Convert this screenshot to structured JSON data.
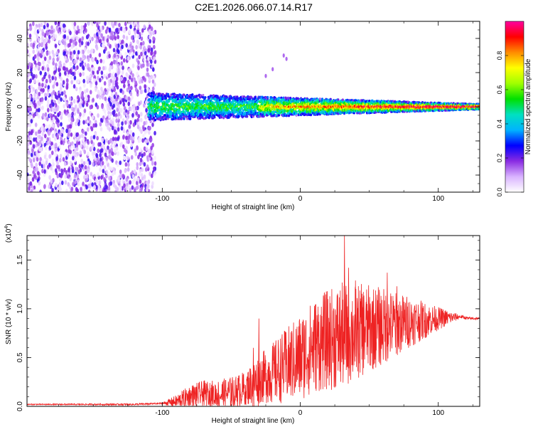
{
  "title": "C2E1.2026.066.07.14.R17",
  "chart_data": [
    {
      "type": "heatmap",
      "id": "spectrogram",
      "xlabel": "Height of straight line (km)",
      "ylabel": "Frequency (Hz)",
      "xlim": [
        -198,
        130
      ],
      "ylim": [
        -50,
        50
      ],
      "xticks": [
        -100,
        0,
        100
      ],
      "yticks": [
        -40,
        -20,
        0,
        20,
        40
      ],
      "xtick_labels": [
        "-100",
        "0",
        "100"
      ],
      "ytick_labels": [
        "-40",
        "-20",
        "0",
        "20",
        "40"
      ],
      "noise_region_x": [
        -198,
        -105
      ],
      "signal_onset_x": -110,
      "signal_center_freq": 0,
      "signal_band_half_width": [
        8,
        1.5
      ],
      "colorbar": {
        "label": "Normalized spectral amplitude",
        "range": [
          0,
          1
        ],
        "ticks": [
          0.0,
          0.2,
          0.4,
          0.6,
          0.8
        ],
        "tick_labels": [
          "0.0",
          "0.2",
          "0.4",
          "0.6",
          "0.8"
        ],
        "colors": [
          "#ffffff",
          "#d9b3ff",
          "#8a2be2",
          "#0000ff",
          "#00b4ff",
          "#00e0c0",
          "#00e000",
          "#a0ff00",
          "#ffff00",
          "#ff8c00",
          "#ff0000",
          "#ff00a0"
        ]
      }
    },
    {
      "type": "line",
      "id": "snr",
      "xlabel": "Height of straight line (km)",
      "ylabel": "SNR (10 * v/v)",
      "y_multiplier_label": "(x10",
      "y_multiplier_exp": "4",
      "y_multiplier_close": ")",
      "xlim": [
        -198,
        130
      ],
      "ylim": [
        0,
        1.75
      ],
      "xticks": [
        -100,
        0,
        100
      ],
      "yticks": [
        0.0,
        0.5,
        1.0,
        1.5
      ],
      "xtick_labels": [
        "-100",
        "0",
        "100"
      ],
      "ytick_labels": [
        "0.0",
        "0.5",
        "1.0",
        "1.5"
      ],
      "color": "#ee2222",
      "envelope_x": [
        -198,
        -120,
        -100,
        -90,
        -80,
        -70,
        -60,
        -50,
        -40,
        -30,
        -20,
        -10,
        0,
        10,
        20,
        30,
        40,
        50,
        60,
        70,
        80,
        90,
        100,
        110,
        116,
        122,
        130
      ],
      "envelope_y": [
        0.02,
        0.02,
        0.03,
        0.05,
        0.1,
        0.13,
        0.12,
        0.14,
        0.18,
        0.28,
        0.34,
        0.42,
        0.5,
        0.62,
        0.68,
        0.72,
        0.76,
        0.8,
        0.82,
        0.84,
        0.87,
        0.88,
        0.9,
        0.91,
        0.92,
        0.9,
        0.9
      ],
      "spread_x": [
        -198,
        -100,
        -80,
        -40,
        0,
        30,
        60,
        100,
        116,
        130
      ],
      "spread_y": [
        0.005,
        0.01,
        0.12,
        0.18,
        0.45,
        0.55,
        0.4,
        0.12,
        0.02,
        0.01
      ],
      "peaks": [
        [
          32,
          1.75
        ],
        [
          35,
          1.42
        ],
        [
          40,
          1.29
        ],
        [
          45,
          1.12
        ],
        [
          63,
          1.37
        ],
        [
          70,
          1.23
        ],
        [
          -30,
          0.9
        ],
        [
          -34,
          0.6
        ]
      ]
    }
  ]
}
